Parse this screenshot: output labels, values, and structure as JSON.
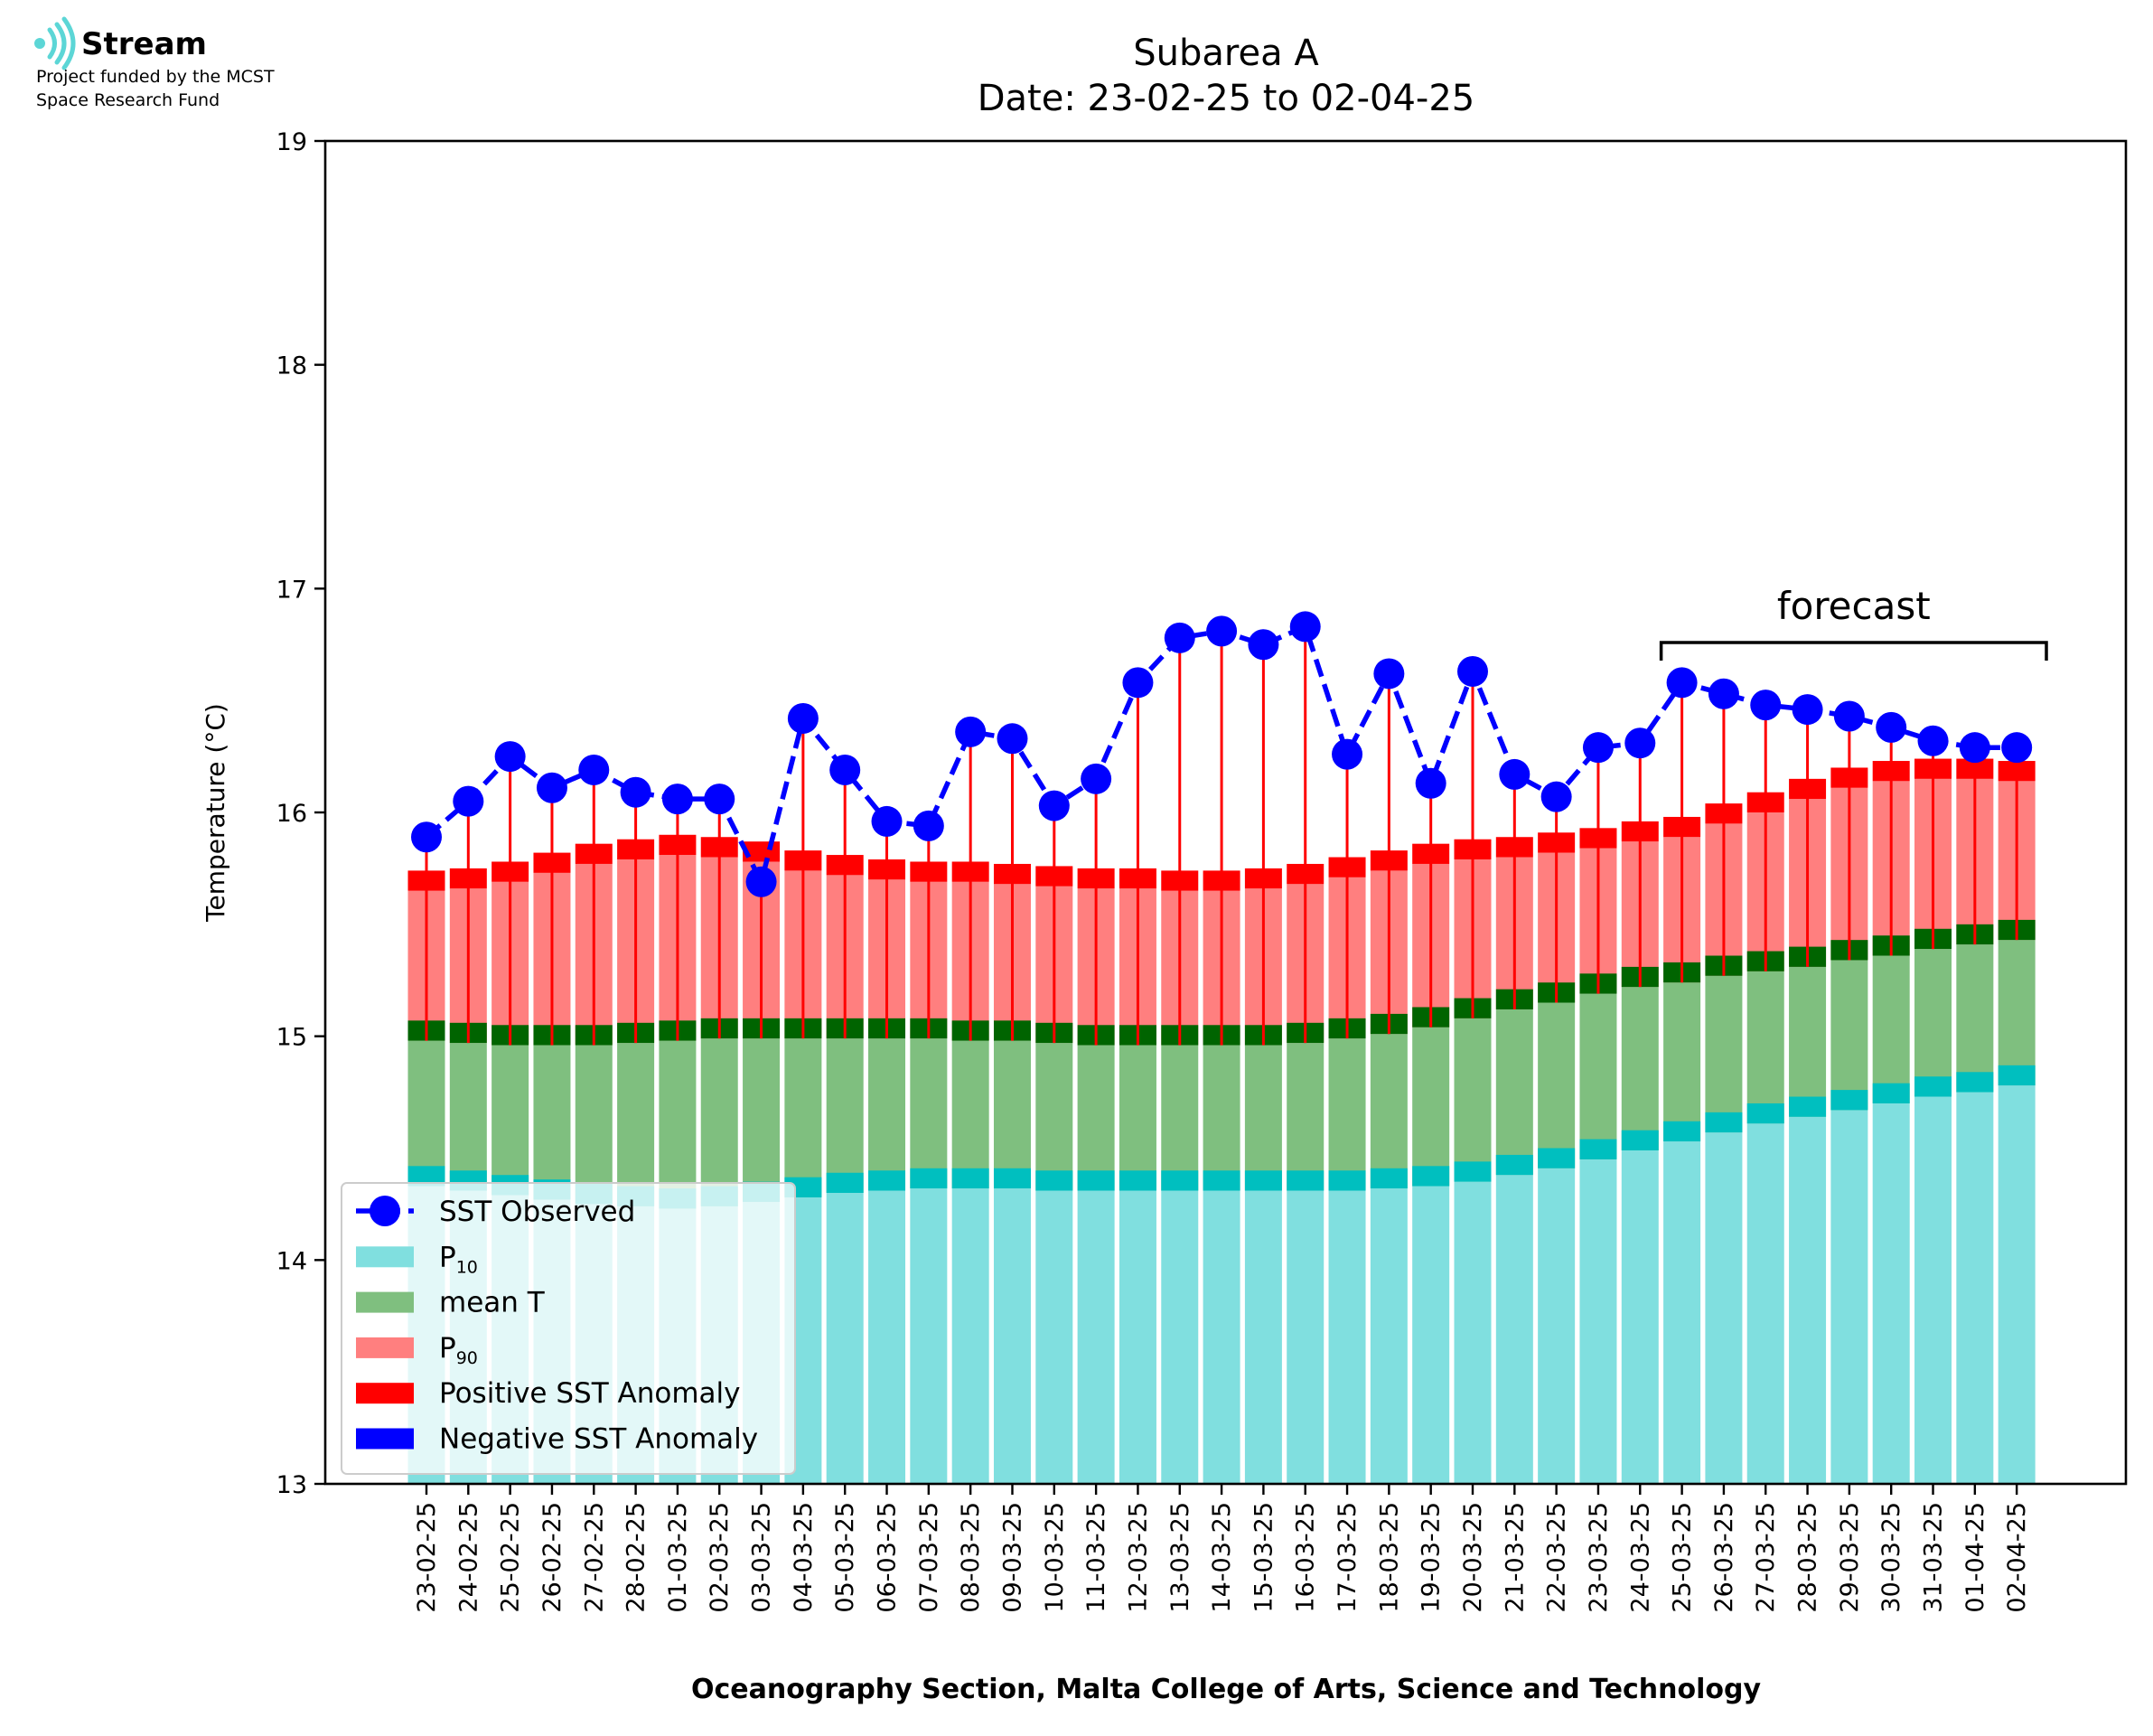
{
  "logo": {
    "name": "Stream",
    "funding_line_1": "Project funded by the MCST",
    "funding_line_2": "Space Research Fund"
  },
  "chart_data": {
    "type": "bar",
    "title": "Subarea A",
    "subtitle": "Date: 23-02-25 to 02-04-25",
    "xlabel": "Oceanography Section, Malta College of Arts, Science and Technology",
    "ylabel": "Temperature (°C)",
    "ylim": [
      13,
      19
    ],
    "yticks": [
      13,
      14,
      15,
      16,
      17,
      18,
      19
    ],
    "grid": false,
    "legend_placement": "lower-left",
    "legend": [
      {
        "label": "SST Observed",
        "kind": "line-marker",
        "color": "#0000ff"
      },
      {
        "label": "P",
        "sub": "10",
        "kind": "patch",
        "color": "#80dfdf"
      },
      {
        "label": "mean T",
        "kind": "patch",
        "color": "#7fbf7f"
      },
      {
        "label": "P",
        "sub": "90",
        "kind": "patch",
        "color": "#ff7f7f"
      },
      {
        "label": "Positive SST Anomaly",
        "kind": "patch",
        "color": "#ff0000"
      },
      {
        "label": "Negative SST Anomaly",
        "kind": "patch",
        "color": "#0000ff"
      }
    ],
    "colors": {
      "p10": "#80dfdf",
      "p10_band": "#00bfbf",
      "mean": "#7fbf7f",
      "mean_band": "#006400",
      "p90": "#ff7f7f",
      "p90_band": "#ff0000",
      "observed": "#0000ff",
      "positive_anomaly": "#ff0000"
    },
    "annotation": {
      "text": "forecast",
      "from": "25-03-25",
      "to": "02-04-25"
    },
    "categories": [
      "23-02-25",
      "24-02-25",
      "25-02-25",
      "26-02-25",
      "27-02-25",
      "28-02-25",
      "01-03-25",
      "02-03-25",
      "03-03-25",
      "04-03-25",
      "05-03-25",
      "06-03-25",
      "07-03-25",
      "08-03-25",
      "09-03-25",
      "10-03-25",
      "11-03-25",
      "12-03-25",
      "13-03-25",
      "14-03-25",
      "15-03-25",
      "16-03-25",
      "17-03-25",
      "18-03-25",
      "19-03-25",
      "20-03-25",
      "21-03-25",
      "22-03-25",
      "23-03-25",
      "24-03-25",
      "25-03-25",
      "26-03-25",
      "27-03-25",
      "28-03-25",
      "29-03-25",
      "30-03-25",
      "31-03-25",
      "01-04-25",
      "02-04-25"
    ],
    "series": [
      {
        "name": "P10",
        "values": [
          14.33,
          14.31,
          14.29,
          14.27,
          14.25,
          14.24,
          14.23,
          14.24,
          14.26,
          14.28,
          14.3,
          14.31,
          14.32,
          14.32,
          14.32,
          14.31,
          14.31,
          14.31,
          14.31,
          14.31,
          14.31,
          14.31,
          14.31,
          14.32,
          14.33,
          14.35,
          14.38,
          14.41,
          14.45,
          14.49,
          14.53,
          14.57,
          14.61,
          14.64,
          14.67,
          14.7,
          14.73,
          14.75,
          14.78
        ]
      },
      {
        "name": "mean T",
        "values": [
          14.98,
          14.97,
          14.96,
          14.96,
          14.96,
          14.97,
          14.98,
          14.99,
          14.99,
          14.99,
          14.99,
          14.99,
          14.99,
          14.98,
          14.98,
          14.97,
          14.96,
          14.96,
          14.96,
          14.96,
          14.96,
          14.97,
          14.99,
          15.01,
          15.04,
          15.08,
          15.12,
          15.15,
          15.19,
          15.22,
          15.24,
          15.27,
          15.29,
          15.31,
          15.34,
          15.36,
          15.39,
          15.41,
          15.43
        ]
      },
      {
        "name": "P90",
        "values": [
          15.65,
          15.66,
          15.69,
          15.73,
          15.77,
          15.79,
          15.81,
          15.8,
          15.78,
          15.74,
          15.72,
          15.7,
          15.69,
          15.69,
          15.68,
          15.67,
          15.66,
          15.66,
          15.65,
          15.65,
          15.66,
          15.68,
          15.71,
          15.74,
          15.77,
          15.79,
          15.8,
          15.82,
          15.84,
          15.87,
          15.89,
          15.95,
          16.0,
          16.06,
          16.11,
          16.14,
          16.15,
          16.15,
          16.14
        ]
      },
      {
        "name": "SST Observed",
        "values": [
          15.89,
          16.05,
          16.25,
          16.11,
          16.19,
          16.09,
          16.06,
          16.06,
          15.69,
          16.42,
          16.19,
          15.96,
          15.94,
          16.36,
          16.33,
          16.03,
          16.15,
          16.58,
          16.78,
          16.81,
          16.75,
          16.83,
          16.26,
          16.62,
          16.13,
          16.63,
          16.17,
          16.07,
          16.29,
          16.31,
          16.58,
          16.53,
          16.48,
          16.46,
          16.43,
          16.38,
          16.32,
          16.29,
          16.29
        ]
      }
    ]
  }
}
